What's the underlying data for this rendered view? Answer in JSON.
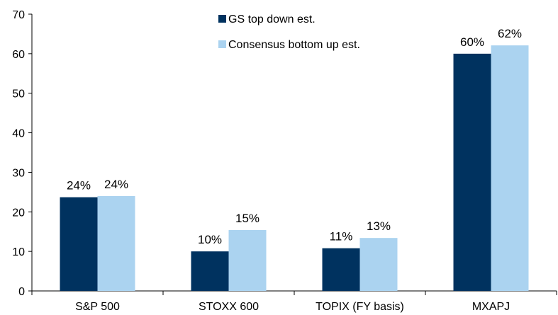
{
  "chart_data": {
    "type": "bar",
    "categories": [
      "S&P 500",
      "STOXX 600",
      "TOPIX (FY basis)",
      "MXAPJ"
    ],
    "series": [
      {
        "name": "GS top down est.",
        "color": "#00325F",
        "values": [
          23.7,
          10,
          10.8,
          60
        ],
        "labels": [
          "24%",
          "10%",
          "11%",
          "60%"
        ]
      },
      {
        "name": "Consensus bottom up est.",
        "color": "#ABD3F0",
        "values": [
          24,
          15.4,
          13.4,
          62.1
        ],
        "labels": [
          "24%",
          "15%",
          "13%",
          "62%"
        ]
      }
    ],
    "ylim": [
      0,
      70
    ],
    "yticks": [
      0,
      10,
      20,
      30,
      40,
      50,
      60,
      70
    ],
    "grid": false,
    "legend_position": "top-center"
  }
}
